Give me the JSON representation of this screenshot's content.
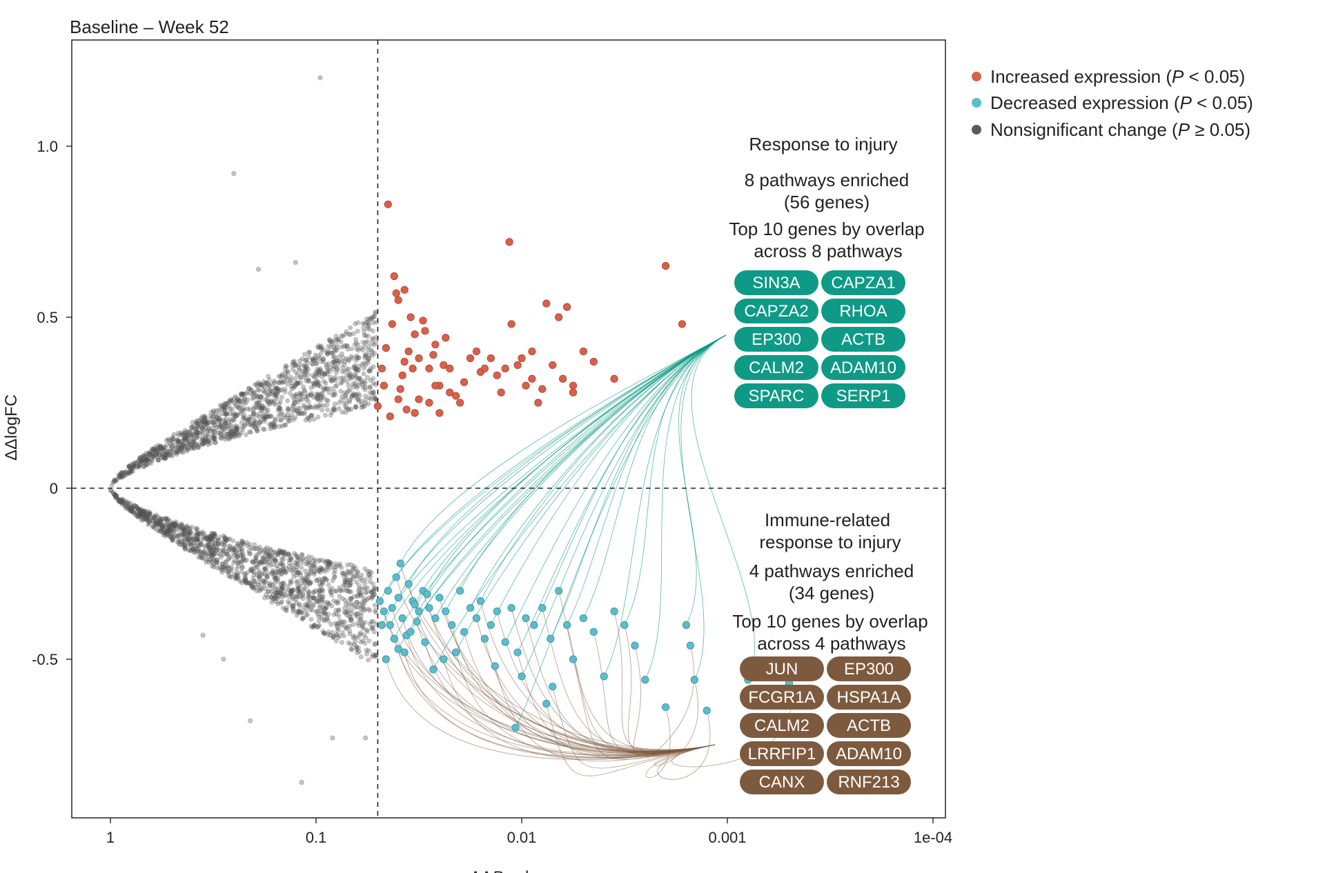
{
  "chart_data": {
    "type": "scatter",
    "title": "Baseline – Week 52",
    "xlabel_prefix": "ΔΔ",
    "xlabel_italic": "P",
    "xlabel_suffix": " value",
    "ylabel": "ΔΔlogFC",
    "x_scale": "reverse-log10 of P value",
    "xlim_log10P": [
      0,
      4.2
    ],
    "ylim": [
      -0.97,
      1.3
    ],
    "x_ticks": [
      {
        "log10": 0,
        "label": "1"
      },
      {
        "log10": 1,
        "label": "0.1"
      },
      {
        "log10": 2,
        "label": "0.01"
      },
      {
        "log10": 3,
        "label": "0.001"
      },
      {
        "log10": 4,
        "label": "1e-04"
      }
    ],
    "y_ticks": [
      {
        "value": 1.0,
        "label": "1.0"
      },
      {
        "value": 0.5,
        "label": "0.5"
      },
      {
        "value": 0,
        "label": "0"
      },
      {
        "value": -0.5,
        "label": "-0.5"
      }
    ],
    "threshold_log10P": 1.3,
    "threshold_y": 0,
    "legend": [
      {
        "key": "increased",
        "prefix": "Increased expression (",
        "italic": "P",
        "suffix": " < 0.05)",
        "color": "#d9604a"
      },
      {
        "key": "decreased",
        "prefix": "Decreased expression (",
        "italic": "P",
        "suffix": " < 0.05)",
        "color": "#5bbccc"
      },
      {
        "key": "nonsig",
        "prefix": "Nonsignificant change (",
        "italic": "P",
        "suffix": " ≥ 0.05)",
        "color": "#5a5a5a"
      }
    ],
    "series": [
      {
        "name": "Increased expression",
        "color": "#d9604a",
        "points": [
          [
            1.35,
            0.83
          ],
          [
            1.38,
            0.62
          ],
          [
            1.4,
            0.55
          ],
          [
            1.45,
            0.4
          ],
          [
            1.5,
            0.38
          ],
          [
            1.55,
            0.35
          ],
          [
            1.6,
            0.3
          ],
          [
            1.65,
            0.28
          ],
          [
            1.7,
            0.25
          ],
          [
            1.42,
            0.33
          ],
          [
            1.48,
            0.45
          ],
          [
            1.52,
            0.49
          ],
          [
            1.58,
            0.42
          ],
          [
            1.62,
            0.36
          ],
          [
            1.68,
            0.27
          ],
          [
            1.75,
            0.38
          ],
          [
            1.8,
            0.34
          ],
          [
            1.85,
            0.38
          ],
          [
            1.9,
            0.28
          ],
          [
            1.95,
            0.48
          ],
          [
            2.0,
            0.38
          ],
          [
            2.05,
            0.32
          ],
          [
            2.1,
            0.29
          ],
          [
            2.15,
            0.36
          ],
          [
            2.2,
            0.32
          ],
          [
            2.25,
            0.28
          ],
          [
            2.3,
            0.4
          ],
          [
            2.35,
            0.37
          ],
          [
            1.36,
            0.21
          ],
          [
            1.4,
            0.26
          ],
          [
            1.44,
            0.23
          ],
          [
            1.48,
            0.22
          ],
          [
            1.55,
            0.25
          ],
          [
            1.6,
            0.22
          ],
          [
            1.37,
            0.48
          ],
          [
            1.39,
            0.57
          ],
          [
            1.43,
            0.58
          ],
          [
            1.46,
            0.5
          ],
          [
            1.53,
            0.46
          ],
          [
            1.57,
            0.39
          ],
          [
            1.63,
            0.44
          ],
          [
            1.72,
            0.31
          ],
          [
            1.82,
            0.35
          ],
          [
            1.88,
            0.33
          ],
          [
            1.98,
            0.36
          ],
          [
            2.02,
            0.3
          ],
          [
            2.08,
            0.25
          ],
          [
            2.12,
            0.54
          ],
          [
            2.18,
            0.5
          ],
          [
            2.22,
            0.53
          ],
          [
            2.45,
            0.32
          ],
          [
            2.7,
            0.65
          ],
          [
            2.78,
            0.48
          ],
          [
            1.3,
            0.24
          ],
          [
            1.33,
            0.3
          ],
          [
            1.32,
            0.35
          ],
          [
            1.34,
            0.41
          ],
          [
            1.41,
            0.29
          ],
          [
            1.47,
            0.35
          ],
          [
            1.58,
            0.3
          ],
          [
            1.65,
            0.35
          ],
          [
            1.78,
            0.4
          ],
          [
            1.92,
            0.35
          ],
          [
            2.05,
            0.4
          ],
          [
            2.25,
            0.3
          ],
          [
            1.94,
            0.72
          ],
          [
            1.5,
            0.26
          ],
          [
            1.43,
            0.37
          ]
        ]
      },
      {
        "name": "Decreased expression",
        "color": "#5bbccc",
        "points": [
          [
            1.31,
            -0.33
          ],
          [
            1.33,
            -0.36
          ],
          [
            1.35,
            -0.3
          ],
          [
            1.37,
            -0.35
          ],
          [
            1.4,
            -0.32
          ],
          [
            1.42,
            -0.38
          ],
          [
            1.45,
            -0.28
          ],
          [
            1.47,
            -0.33
          ],
          [
            1.5,
            -0.36
          ],
          [
            1.52,
            -0.3
          ],
          [
            1.36,
            -0.4
          ],
          [
            1.39,
            -0.26
          ],
          [
            1.41,
            -0.22
          ],
          [
            1.44,
            -0.43
          ],
          [
            1.48,
            -0.34
          ],
          [
            1.55,
            -0.35
          ],
          [
            1.58,
            -0.38
          ],
          [
            1.6,
            -0.32
          ],
          [
            1.63,
            -0.36
          ],
          [
            1.66,
            -0.4
          ],
          [
            1.7,
            -0.3
          ],
          [
            1.72,
            -0.42
          ],
          [
            1.75,
            -0.35
          ],
          [
            1.78,
            -0.38
          ],
          [
            1.8,
            -0.33
          ],
          [
            1.82,
            -0.44
          ],
          [
            1.85,
            -0.4
          ],
          [
            1.88,
            -0.36
          ],
          [
            1.92,
            -0.45
          ],
          [
            1.95,
            -0.35
          ],
          [
            1.98,
            -0.48
          ],
          [
            2.02,
            -0.38
          ],
          [
            2.06,
            -0.4
          ],
          [
            2.1,
            -0.35
          ],
          [
            2.14,
            -0.44
          ],
          [
            2.18,
            -0.3
          ],
          [
            2.22,
            -0.4
          ],
          [
            2.25,
            -0.5
          ],
          [
            2.3,
            -0.38
          ],
          [
            2.35,
            -0.42
          ],
          [
            2.4,
            -0.55
          ],
          [
            2.45,
            -0.36
          ],
          [
            2.5,
            -0.4
          ],
          [
            2.55,
            -0.46
          ],
          [
            2.6,
            -0.56
          ],
          [
            2.7,
            -0.64
          ],
          [
            2.8,
            -0.4
          ],
          [
            2.82,
            -0.46
          ],
          [
            2.84,
            -0.56
          ],
          [
            2.9,
            -0.65
          ],
          [
            3.1,
            -0.56
          ],
          [
            3.3,
            -0.57
          ],
          [
            1.32,
            -0.4
          ],
          [
            1.34,
            -0.5
          ],
          [
            1.38,
            -0.44
          ],
          [
            1.43,
            -0.48
          ],
          [
            1.46,
            -0.42
          ],
          [
            1.53,
            -0.45
          ],
          [
            1.57,
            -0.53
          ],
          [
            1.62,
            -0.5
          ],
          [
            1.68,
            -0.48
          ],
          [
            1.87,
            -0.52
          ],
          [
            2.0,
            -0.55
          ],
          [
            2.15,
            -0.58
          ],
          [
            1.97,
            -0.7
          ],
          [
            2.12,
            -0.63
          ],
          [
            1.4,
            -0.47
          ],
          [
            1.49,
            -0.39
          ],
          [
            1.54,
            -0.31
          ]
        ]
      }
    ],
    "nonsignificant_points": {
      "count": 2600,
      "x_range_log10P": [
        0,
        1.3
      ],
      "note": "dense V-shaped cloud of gray points (|logFC| roughly 0.25*x^0.6 to 0.5*x^0.6)",
      "outliers": [
        [
          1.02,
          1.2
        ],
        [
          0.6,
          0.92
        ],
        [
          0.9,
          0.66
        ],
        [
          0.72,
          0.64
        ],
        [
          1.08,
          -0.73
        ],
        [
          0.68,
          -0.68
        ],
        [
          0.93,
          -0.86
        ],
        [
          1.24,
          -0.73
        ],
        [
          0.55,
          -0.5
        ],
        [
          0.45,
          -0.43
        ]
      ]
    },
    "annotations": [
      {
        "key": "response",
        "title_lines": [
          "Response to injury"
        ],
        "count_lines": [
          "8 pathways enriched",
          "(56 genes)"
        ],
        "top_lines": [
          "Top 10 genes by overlap",
          "across 8 pathways"
        ],
        "color": "#0e9a86",
        "connects_to": "Decreased expression",
        "genes": [
          "SIN3A",
          "CAPZA1",
          "CAPZA2",
          "RHOA",
          "EP300",
          "ACTB",
          "CALM2",
          "ADAM10",
          "SPARC",
          "SERP1"
        ]
      },
      {
        "key": "immune",
        "title_lines": [
          "Immune-related",
          "response to injury"
        ],
        "count_lines": [
          "4 pathways enriched",
          "(34 genes)"
        ],
        "top_lines": [
          "Top 10 genes by overlap",
          "across 4 pathways"
        ],
        "color": "#7d5a3e",
        "connects_to": "Decreased expression",
        "genes": [
          "JUN",
          "EP300",
          "FCGR1A",
          "HSPA1A",
          "CALM2",
          "ACTB",
          "LRRFIP1",
          "ADAM10",
          "CANX",
          "RNF213"
        ]
      }
    ]
  }
}
